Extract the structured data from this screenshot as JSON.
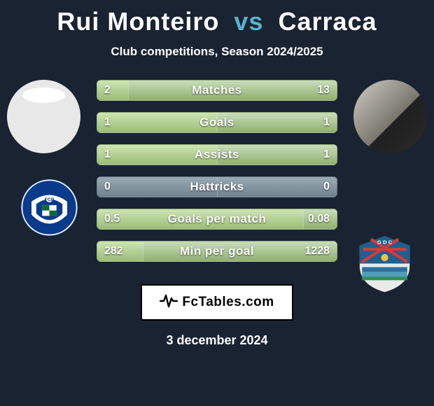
{
  "title": {
    "player1": "Rui Monteiro",
    "vs": "vs",
    "player2": "Carraca",
    "player1_color": "#ffffff",
    "vs_color": "#5bb3cc",
    "player2_color": "#ffffff",
    "fontsize": 36
  },
  "subtitle": "Club competitions, Season 2024/2025",
  "background_color": "#1a2332",
  "club_badges": {
    "left": {
      "primary": "#0a3a8c",
      "secondary": "#ffffff",
      "accent": "#0a6b2f",
      "style": "porto"
    },
    "right": {
      "primary": "#1f5f8f",
      "secondary": "#d33b3b",
      "accent": "#2f8f5f",
      "bar1": "#2f6f9f",
      "bar2": "#4f9fb8",
      "style": "chaves"
    }
  },
  "bar_colors": {
    "left_light": "#cde5b3",
    "left_dark": "#9bbd77",
    "right_light": "#c8ddbb",
    "right_dark": "#90b06f",
    "gray_light": "#9aaab3",
    "gray_dark": "#6f838e",
    "border": "#2b3a46"
  },
  "stats": [
    {
      "label": "Matches",
      "left_val": "2",
      "right_val": "13",
      "left_pct": 13,
      "right_pct": 87,
      "scheme": "green"
    },
    {
      "label": "Goals",
      "left_val": "1",
      "right_val": "1",
      "left_pct": 50,
      "right_pct": 50,
      "scheme": "green"
    },
    {
      "label": "Assists",
      "left_val": "1",
      "right_val": "1",
      "left_pct": 50,
      "right_pct": 50,
      "scheme": "green"
    },
    {
      "label": "Hattricks",
      "left_val": "0",
      "right_val": "0",
      "left_pct": 50,
      "right_pct": 50,
      "scheme": "gray"
    },
    {
      "label": "Goals per match",
      "left_val": "0.5",
      "right_val": "0.08",
      "left_pct": 86,
      "right_pct": 14,
      "scheme": "green"
    },
    {
      "label": "Min per goal",
      "left_val": "282",
      "right_val": "1228",
      "left_pct": 19,
      "right_pct": 81,
      "scheme": "green"
    }
  ],
  "footer": {
    "brand": "FcTables.com",
    "bg": "#ffffff",
    "border": "#000000"
  },
  "date": "3 december 2024"
}
